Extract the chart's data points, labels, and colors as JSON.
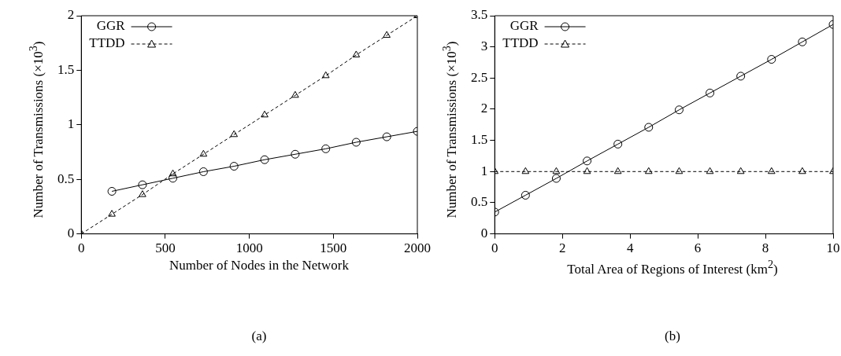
{
  "chart_data": [
    {
      "type": "line",
      "title": "(a)",
      "xlabel": "Number of Nodes in the Network",
      "ylabel": "Number of Transmissions (×10$^{3}$)",
      "xlim": [
        0,
        2000
      ],
      "xticks": [
        0,
        500,
        1000,
        1500,
        2000
      ],
      "ylim": [
        0,
        2
      ],
      "yticks": [
        0,
        0.5,
        1,
        1.5,
        2
      ],
      "grid": false,
      "legend": "top left",
      "series": [
        {
          "name": "GGR",
          "color": "#000000",
          "marker": "circle",
          "line_style": "solid",
          "x": [
            182,
            364,
            545,
            727,
            909,
            1091,
            1273,
            1455,
            1636,
            1818,
            2000
          ],
          "values": [
            0.39,
            0.45,
            0.51,
            0.57,
            0.62,
            0.68,
            0.73,
            0.78,
            0.84,
            0.89,
            0.94
          ]
        },
        {
          "name": "TTDD",
          "color": "#000000",
          "marker": "triangle",
          "line_style": "dashed",
          "x": [
            0,
            182,
            364,
            545,
            727,
            909,
            1091,
            1273,
            1455,
            1636,
            1818,
            2000
          ],
          "values": [
            0,
            0.18,
            0.36,
            0.55,
            0.73,
            0.91,
            1.09,
            1.27,
            1.45,
            1.64,
            1.82,
            2.0
          ]
        }
      ]
    },
    {
      "type": "line",
      "title": "(b)",
      "xlabel": "Total Area of Regions of Interest (km$^{2}$)",
      "ylabel": "Number of Transmissions (×10$^{3}$)",
      "xlim": [
        0,
        10
      ],
      "xticks": [
        0,
        2,
        4,
        6,
        8,
        10
      ],
      "ylim": [
        0,
        3.5
      ],
      "yticks": [
        0,
        0.5,
        1,
        1.5,
        2,
        2.5,
        3,
        3.5
      ],
      "grid": false,
      "legend": "top left",
      "series": [
        {
          "name": "GGR",
          "color": "#000000",
          "marker": "circle",
          "line_style": "solid",
          "x": [
            0,
            0.91,
            1.82,
            2.73,
            3.64,
            4.55,
            5.45,
            6.36,
            7.27,
            8.18,
            9.09,
            10
          ],
          "values": [
            0.35,
            0.62,
            0.89,
            1.17,
            1.44,
            1.71,
            1.99,
            2.26,
            2.53,
            2.8,
            3.08,
            3.36
          ]
        },
        {
          "name": "TTDD",
          "color": "#000000",
          "marker": "triangle",
          "line_style": "dashed",
          "x": [
            0,
            0.91,
            1.82,
            2.73,
            3.64,
            4.55,
            5.45,
            6.36,
            7.27,
            8.18,
            9.09,
            10
          ],
          "values": [
            1,
            1,
            1,
            1,
            1,
            1,
            1,
            1,
            1,
            1,
            1,
            1
          ]
        }
      ]
    }
  ]
}
